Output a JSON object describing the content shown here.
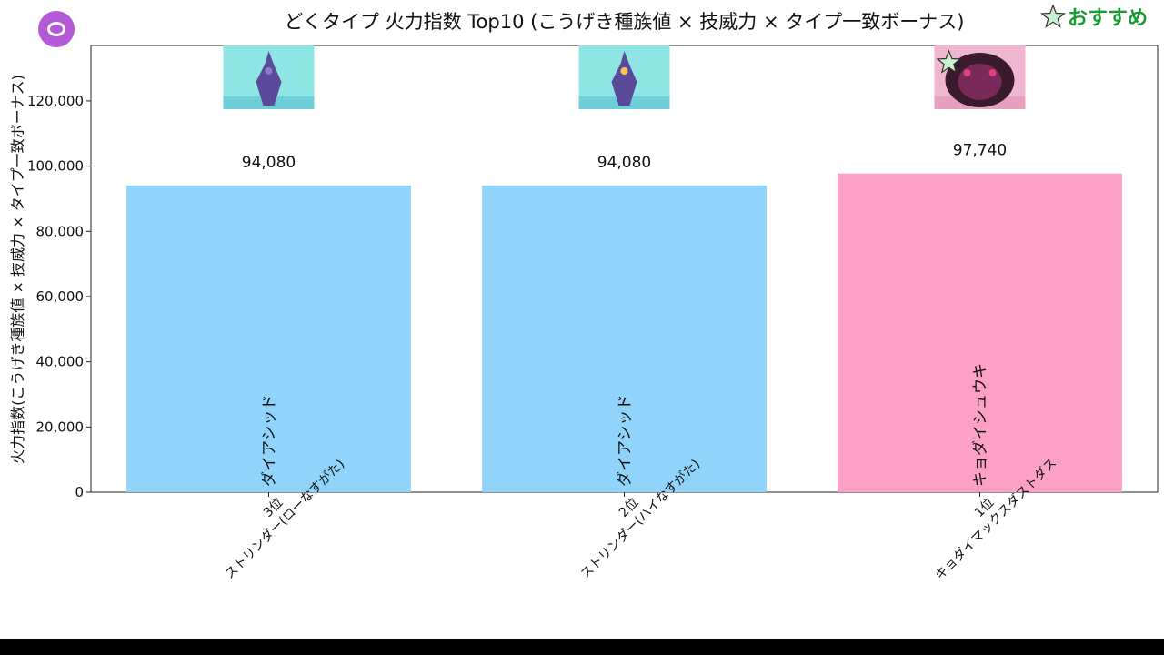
{
  "header": {
    "recommend_label": "おすすめ"
  },
  "chart_data": {
    "type": "bar",
    "title": "どくタイプ 火力指数 Top10 (こうげき種族値 × 技威力 × タイプ一致ボーナス)",
    "ylabel": "火力指数(こうげき種族値 × 技威力 × タイプ一致ボーナス)",
    "xlabel": "",
    "ylim": [
      0,
      137000
    ],
    "yticks": [
      0,
      20000,
      40000,
      60000,
      80000,
      100000,
      120000
    ],
    "ytick_labels": [
      "0",
      "20,000",
      "40,000",
      "60,000",
      "80,000",
      "100,000",
      "120,000"
    ],
    "grid": false,
    "categories": [
      [
        "3位",
        "ストリンダー(ローなすがた)"
      ],
      [
        "2位",
        "ストリンダー(ハイなすがた)"
      ],
      [
        "1位",
        "キョダイマックスダストダス"
      ]
    ],
    "values": [
      94080,
      94080,
      97740
    ],
    "value_labels": [
      "94,080",
      "94,080",
      "97,740"
    ],
    "moves": [
      "ダイアシッド",
      "ダイアシッド",
      "キョダイシュウキ"
    ],
    "bar_colors": [
      "#90d4fb",
      "#90d4fb",
      "#fca0c6"
    ],
    "recommended": [
      false,
      false,
      true
    ],
    "thumbnails": [
      "stunfisk-low-icon",
      "stunfisk-amped-icon",
      "gmax-garbodor-icon"
    ],
    "accent_color": "#1a9a33"
  }
}
